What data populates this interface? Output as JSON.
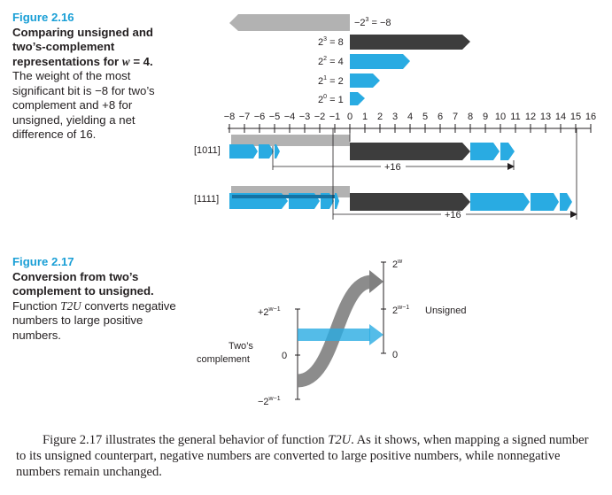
{
  "fig16": {
    "label": "Figure 2.16",
    "title": "Comparing unsigned and two’s-complement representations for",
    "title_var": "w",
    "title_eq": " = 4.",
    "body": "The weight of the most significant bit is −8 for two’s complement and +8 for unsigned, yielding a net difference of 16.",
    "weights": [
      {
        "base": "−2",
        "exp": "3",
        "value": " = −8"
      },
      {
        "base": "2",
        "exp": "3",
        "value": " = 8"
      },
      {
        "base": "2",
        "exp": "2",
        "value": " = 4"
      },
      {
        "base": "2",
        "exp": "1",
        "value": " = 2"
      },
      {
        "base": "2",
        "exp": "0",
        "value": " = 1"
      }
    ],
    "axis_ticks": [
      "−8",
      "−7",
      "−6",
      "−5",
      "−4",
      "−3",
      "−2",
      "−1",
      "0",
      "1",
      "2",
      "3",
      "4",
      "5",
      "6",
      "7",
      "8",
      "9",
      "10",
      "11",
      "12",
      "13",
      "14",
      "15",
      "16"
    ],
    "rows": [
      {
        "label": "[1011]",
        "offset_label": "+16"
      },
      {
        "label": "[1111]",
        "offset_label": "+16"
      }
    ]
  },
  "fig17": {
    "label": "Figure 2.17",
    "title": "Conversion from two’s complement to unsigned.",
    "body_prefix": "Function ",
    "body_fn": "T2U",
    "body_suffix": " converts negative numbers to large positive numbers.",
    "left_top": {
      "base": "+2",
      "exp": "w−1"
    },
    "left_zero": "0",
    "left_bottom": {
      "base": "−2",
      "exp": "w−1"
    },
    "left_title_1": "Two’s",
    "left_title_2": "complement",
    "right_top": {
      "base": "2",
      "exp": "w"
    },
    "right_mid": {
      "base": "2",
      "exp": "w−1"
    },
    "right_zero": "0",
    "right_title": "Unsigned"
  },
  "paragraph": {
    "prefix": "Figure 2.17 illustrates the general behavior of function ",
    "fn": "T2U",
    "suffix": ". As it shows, when mapping a signed number to its unsigned counterpart, negative numbers are converted to large positive numbers, while nonnegative numbers remain unchanged."
  },
  "colors": {
    "accent": "#1a9fd6",
    "light_blue": "#29abe2",
    "dark": "#3d3d3d",
    "gray": "#b2b2b2",
    "dark_blue": "#1673a3"
  }
}
